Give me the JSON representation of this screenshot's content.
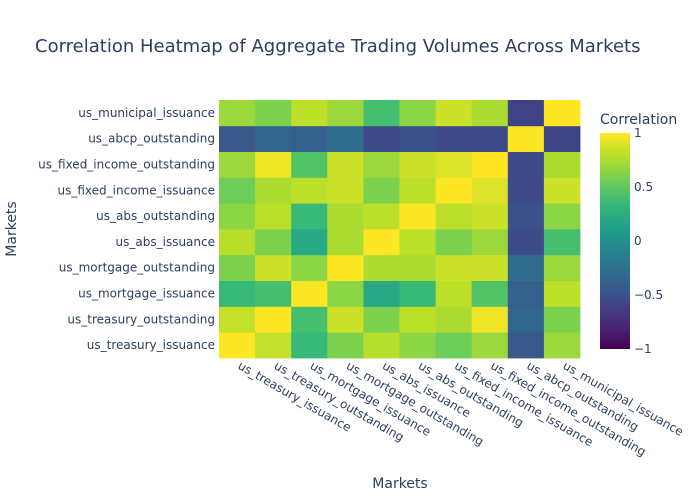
{
  "chart_data": {
    "type": "heatmap",
    "title": "Correlation Heatmap of Aggregate Trading Volumes Across Markets",
    "xlabel": "Markets",
    "ylabel": "Markets",
    "colorbar_title": "Correlation",
    "colorscale": "viridis",
    "zrange": [
      -1,
      1
    ],
    "colorbar_ticks": [
      {
        "value": 1,
        "label": "1"
      },
      {
        "value": 0.5,
        "label": "0.5"
      },
      {
        "value": 0,
        "label": "0"
      },
      {
        "value": -0.5,
        "label": "−0.5"
      },
      {
        "value": -1,
        "label": "−1"
      }
    ],
    "x_categories": [
      "us_treasury_issuance",
      "us_treasury_outstanding",
      "us_mortgage_issuance",
      "us_mortgage_outstanding",
      "us_abs_issuance",
      "us_abs_outstanding",
      "us_fixed_income_issuance",
      "us_fixed_income_outstanding",
      "us_abcp_outstanding",
      "us_municipal_issuance"
    ],
    "y_categories": [
      "us_treasury_issuance",
      "us_treasury_outstanding",
      "us_mortgage_issuance",
      "us_mortgage_outstanding",
      "us_abs_issuance",
      "us_abs_outstanding",
      "us_fixed_income_issuance",
      "us_fixed_income_outstanding",
      "us_abcp_outstanding",
      "us_municipal_issuance"
    ],
    "z": [
      [
        1.0,
        0.82,
        0.35,
        0.6,
        0.78,
        0.65,
        0.55,
        0.7,
        -0.45,
        0.7
      ],
      [
        0.82,
        1.0,
        0.4,
        0.85,
        0.6,
        0.8,
        0.75,
        0.95,
        -0.35,
        0.6
      ],
      [
        0.35,
        0.4,
        1.0,
        0.65,
        0.2,
        0.35,
        0.8,
        0.45,
        -0.4,
        0.8
      ],
      [
        0.6,
        0.85,
        0.65,
        1.0,
        0.75,
        0.75,
        0.85,
        0.85,
        -0.3,
        0.7
      ],
      [
        0.78,
        0.6,
        0.2,
        0.75,
        1.0,
        0.8,
        0.6,
        0.7,
        -0.55,
        0.4
      ],
      [
        0.65,
        0.8,
        0.35,
        0.75,
        0.8,
        1.0,
        0.8,
        0.85,
        -0.5,
        0.65
      ],
      [
        0.55,
        0.75,
        0.8,
        0.85,
        0.6,
        0.8,
        1.0,
        0.9,
        -0.55,
        0.85
      ],
      [
        0.7,
        0.95,
        0.45,
        0.85,
        0.7,
        0.85,
        0.9,
        1.0,
        -0.55,
        0.75
      ],
      [
        -0.45,
        -0.35,
        -0.4,
        -0.3,
        -0.55,
        -0.5,
        -0.55,
        -0.55,
        1.0,
        -0.6
      ],
      [
        0.7,
        0.6,
        0.8,
        0.7,
        0.4,
        0.65,
        0.85,
        0.75,
        -0.6,
        1.0
      ]
    ]
  }
}
